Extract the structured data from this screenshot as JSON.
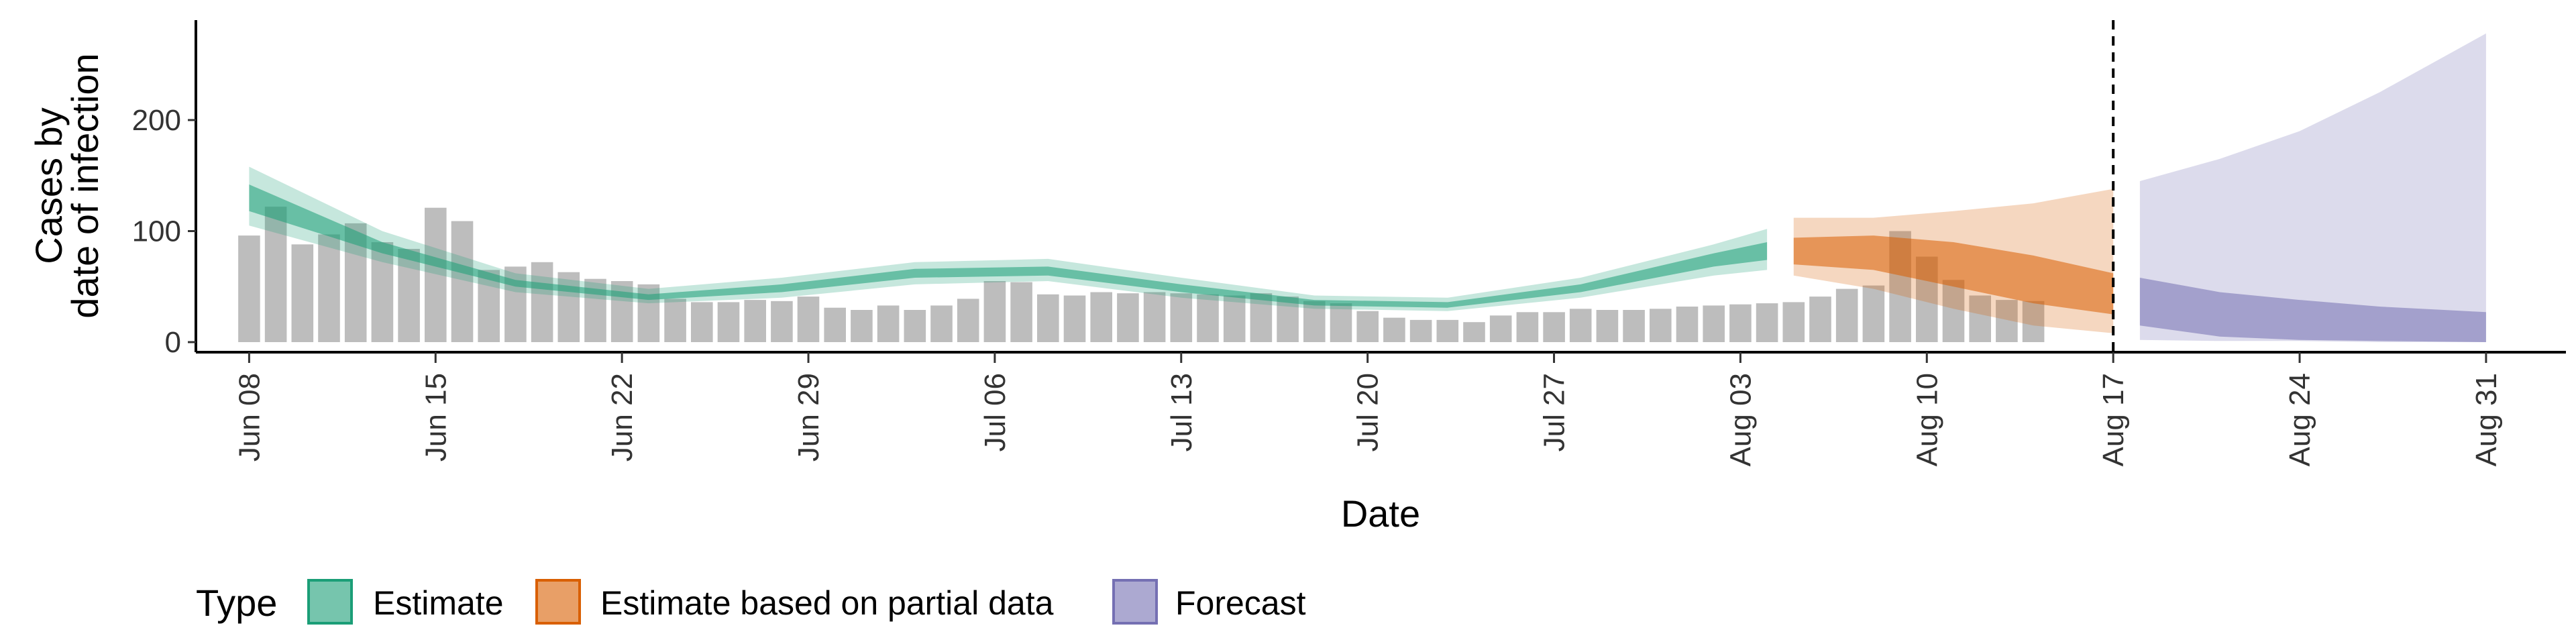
{
  "chart_data": {
    "type": "area",
    "xlabel": "Date",
    "ylabel_lines": [
      "Cases by",
      "date of infection"
    ],
    "y_ticks": [
      0,
      100,
      200
    ],
    "ylim": [
      0,
      290
    ],
    "x_range": [
      "2020-06-06",
      "2020-09-03"
    ],
    "x_ticks": [
      "2020-06-08",
      "2020-06-15",
      "2020-06-22",
      "2020-06-29",
      "2020-07-06",
      "2020-07-13",
      "2020-07-20",
      "2020-07-27",
      "2020-08-03",
      "2020-08-10",
      "2020-08-17",
      "2020-08-24",
      "2020-08-31"
    ],
    "x_tick_labels": [
      "Jun 08",
      "Jun 15",
      "Jun 22",
      "Jun 29",
      "Jul 06",
      "Jul 13",
      "Jul 20",
      "Jul 27",
      "Aug 03",
      "Aug 10",
      "Aug 17",
      "Aug 24",
      "Aug 31"
    ],
    "vline_date": "2020-08-17",
    "grid": false,
    "legend": {
      "title": "Type",
      "placement": "bottom",
      "items": [
        {
          "label": "Estimate",
          "color": "#1b9e77"
        },
        {
          "label": "Estimate based on partial data",
          "color": "#d95f02"
        },
        {
          "label": "Forecast",
          "color": "#7570b3"
        }
      ]
    },
    "bars": {
      "color": "#bdbdbd",
      "start_date": "2020-06-08",
      "values": [
        96,
        122,
        88,
        97,
        107,
        90,
        84,
        121,
        109,
        65,
        68,
        72,
        63,
        57,
        55,
        52,
        39,
        36,
        36,
        38,
        37,
        41,
        31,
        29,
        33,
        29,
        33,
        39,
        55,
        54,
        43,
        42,
        45,
        44,
        45,
        44,
        43,
        42,
        44,
        41,
        37,
        35,
        28,
        22,
        20,
        20,
        18,
        24,
        27,
        27,
        30,
        29,
        29,
        30,
        32,
        33,
        34,
        35,
        36,
        41,
        48,
        51,
        100,
        77,
        56,
        42,
        38,
        37
      ]
    },
    "series": [
      {
        "name": "Estimate",
        "color": "#1b9e77",
        "x": [
          "2020-06-08",
          "2020-06-13",
          "2020-06-18",
          "2020-06-23",
          "2020-06-28",
          "2020-07-03",
          "2020-07-08",
          "2020-07-13",
          "2020-07-18",
          "2020-07-23",
          "2020-07-28",
          "2020-08-02",
          "2020-08-04"
        ],
        "outer_low": [
          105,
          72,
          45,
          35,
          40,
          52,
          55,
          40,
          30,
          28,
          40,
          60,
          65
        ],
        "outer_high": [
          158,
          100,
          62,
          48,
          58,
          72,
          75,
          58,
          42,
          40,
          58,
          88,
          102
        ],
        "inner_low": [
          118,
          80,
          50,
          38,
          45,
          58,
          60,
          45,
          33,
          31,
          45,
          68,
          74
        ],
        "inner_high": [
          142,
          90,
          56,
          43,
          52,
          66,
          68,
          52,
          38,
          36,
          52,
          80,
          90
        ]
      },
      {
        "name": "Estimate based on partial data",
        "color": "#d95f02",
        "x": [
          "2020-08-05",
          "2020-08-08",
          "2020-08-11",
          "2020-08-14",
          "2020-08-17"
        ],
        "outer_low": [
          60,
          48,
          30,
          15,
          8
        ],
        "outer_high": [
          112,
          112,
          118,
          125,
          138
        ],
        "inner_low": [
          70,
          65,
          50,
          35,
          25
        ],
        "inner_high": [
          94,
          96,
          90,
          78,
          62
        ]
      },
      {
        "name": "Forecast",
        "color": "#7570b3",
        "x": [
          "2020-08-18",
          "2020-08-21",
          "2020-08-24",
          "2020-08-27",
          "2020-08-31"
        ],
        "outer_low": [
          2,
          1,
          1,
          0,
          0
        ],
        "outer_high": [
          145,
          165,
          190,
          225,
          278
        ],
        "inner_low": [
          15,
          5,
          2,
          1,
          0
        ],
        "inner_high": [
          58,
          45,
          38,
          32,
          27
        ]
      }
    ]
  }
}
